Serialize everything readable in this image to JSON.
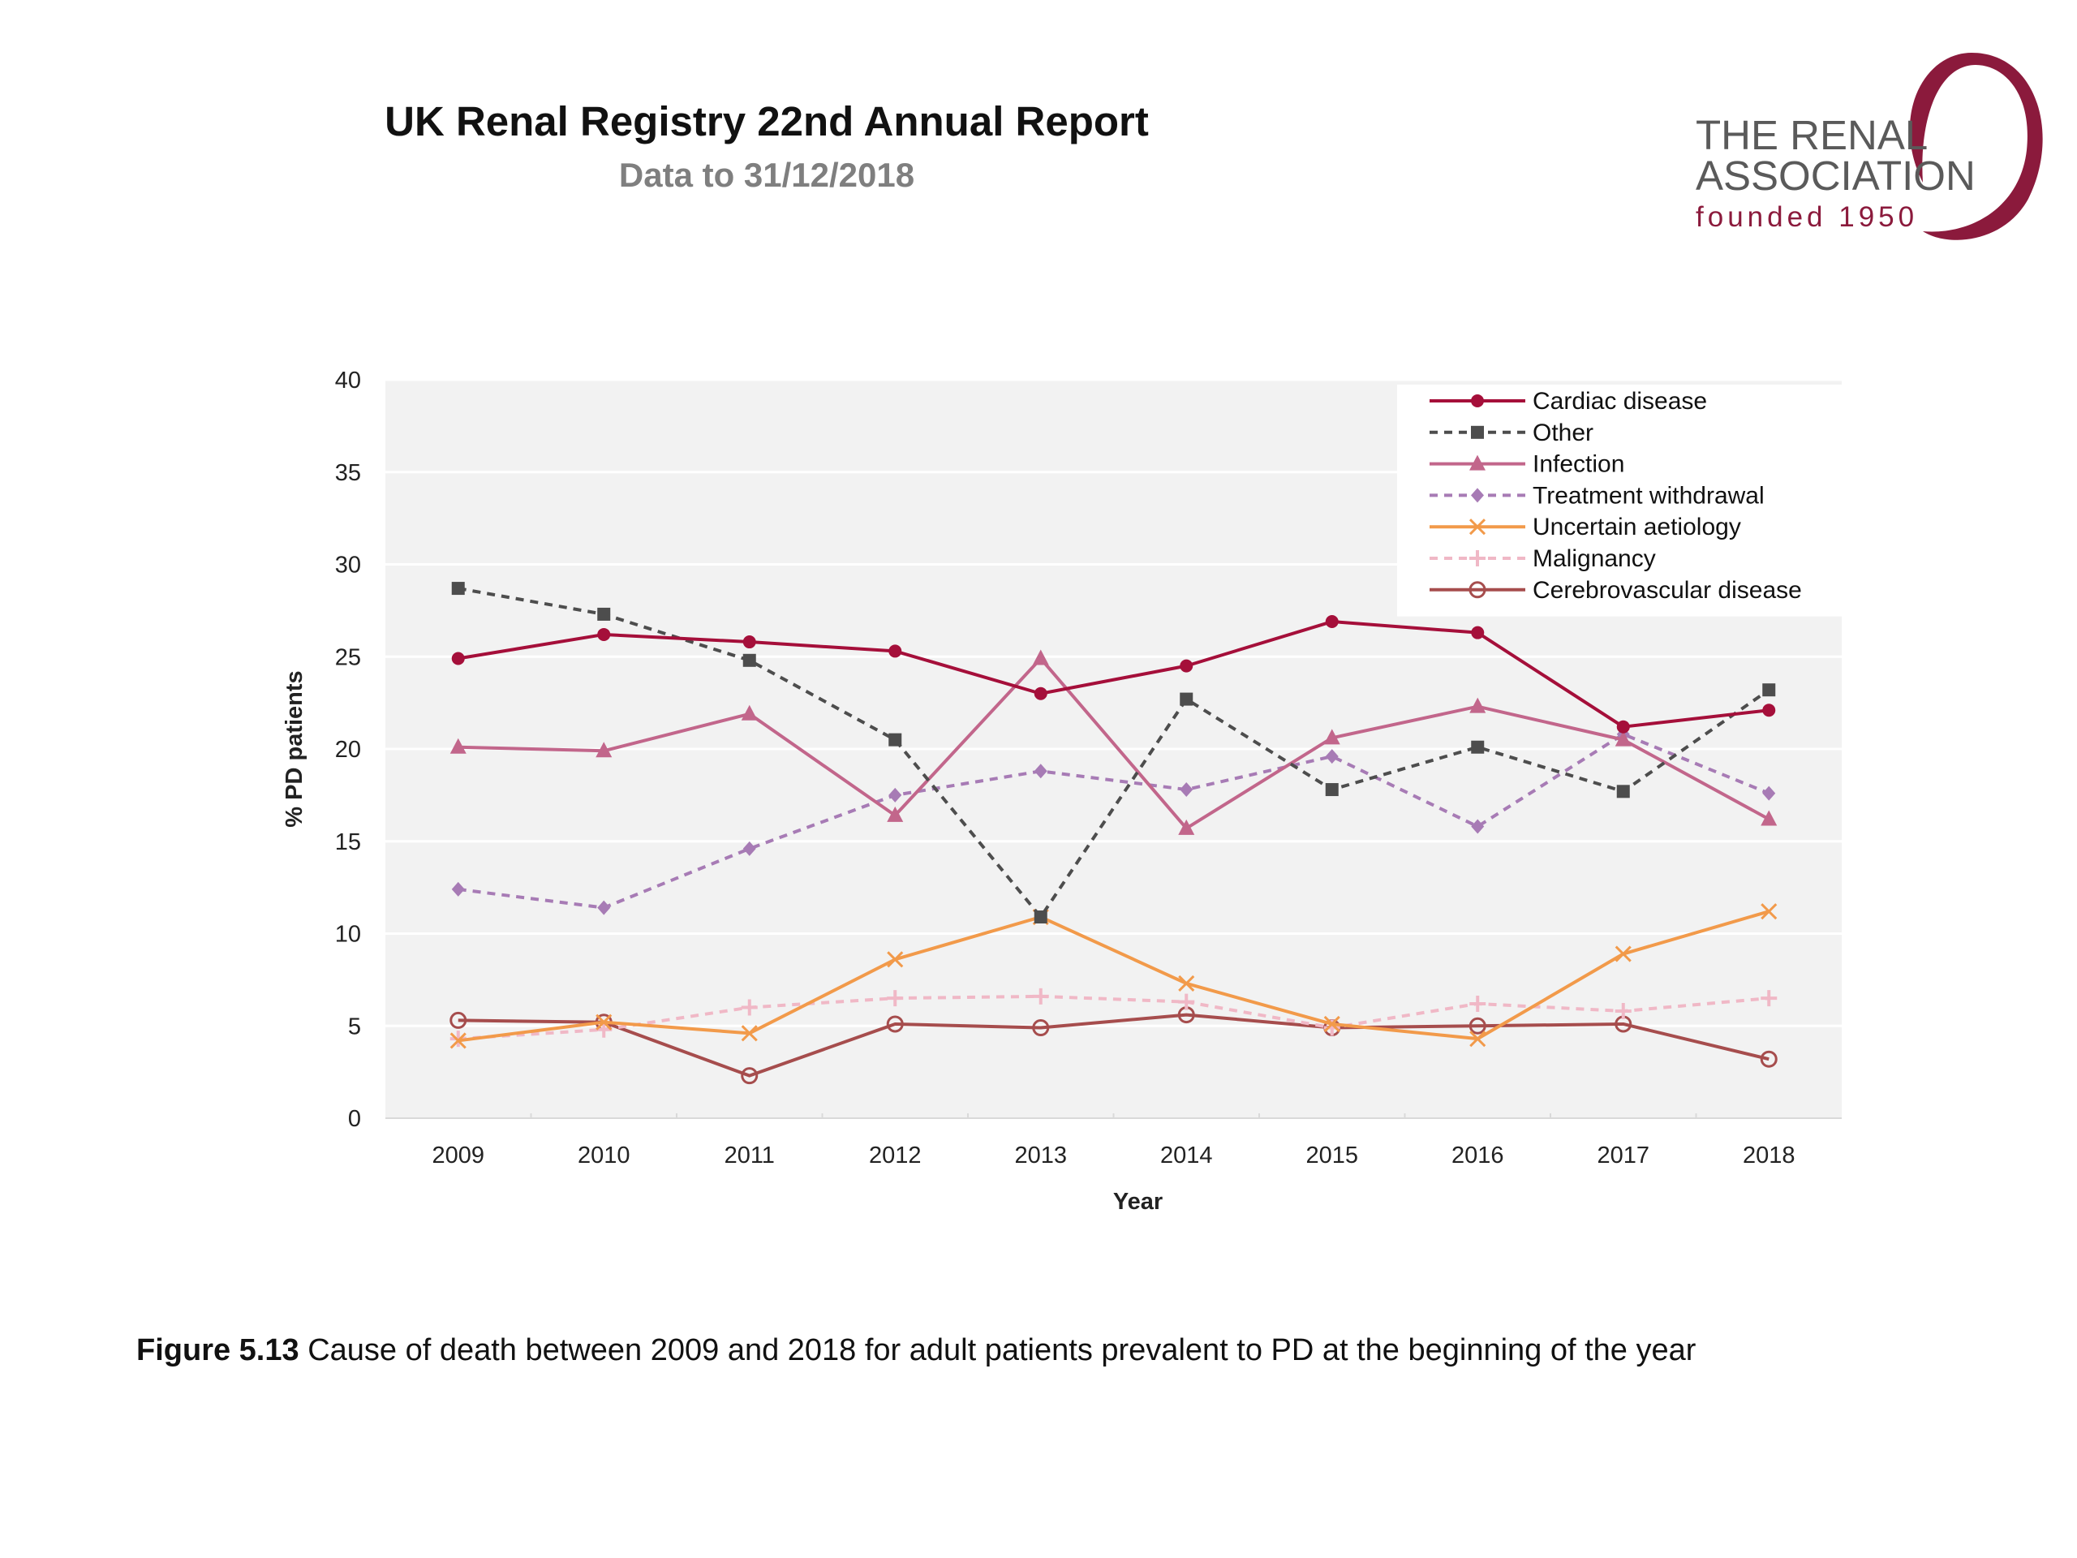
{
  "header": {
    "title": "UK Renal Registry 22nd Annual Report",
    "subtitle": "Data to 31/12/2018"
  },
  "logo": {
    "line1": "THE RENAL",
    "line2": "ASSOCIATION",
    "line3": "founded 1950",
    "color": "#8b1a3c"
  },
  "caption": {
    "label": "Figure 5.13",
    "text": " Cause of death between 2009 and 2018 for adult patients prevalent to PD at the beginning of the year"
  },
  "chart_data": {
    "type": "line",
    "xlabel": "Year",
    "ylabel": "% PD patients",
    "ylim": [
      0,
      40
    ],
    "yticks": [
      0,
      5,
      10,
      15,
      20,
      25,
      30,
      35,
      40
    ],
    "grid": true,
    "legend_position": "top-right",
    "categories": [
      "2009",
      "2010",
      "2011",
      "2012",
      "2013",
      "2014",
      "2015",
      "2016",
      "2017",
      "2018"
    ],
    "series": [
      {
        "name": "Cardiac disease",
        "color": "#a50f3a",
        "dash": "solid",
        "marker": "circle",
        "values": [
          24.9,
          26.2,
          25.8,
          25.3,
          23.0,
          24.5,
          26.9,
          26.3,
          21.2,
          22.1
        ]
      },
      {
        "name": "Other",
        "color": "#4d4d4d",
        "dash": "dashed",
        "marker": "square",
        "values": [
          28.7,
          27.3,
          24.8,
          20.5,
          10.9,
          22.7,
          17.8,
          20.1,
          17.7,
          23.2
        ]
      },
      {
        "name": "Infection",
        "color": "#c2668b",
        "dash": "solid",
        "marker": "triangle",
        "values": [
          20.1,
          19.9,
          21.9,
          16.4,
          24.9,
          15.7,
          20.6,
          22.3,
          20.5,
          16.2
        ]
      },
      {
        "name": "Treatment withdrawal",
        "color": "#a77bb5",
        "dash": "dashed",
        "marker": "diamond",
        "values": [
          12.4,
          11.4,
          14.6,
          17.5,
          18.8,
          17.8,
          19.6,
          15.8,
          20.8,
          17.6
        ]
      },
      {
        "name": "Uncertain aetiology",
        "color": "#f29a4a",
        "dash": "solid",
        "marker": "x",
        "values": [
          4.2,
          5.2,
          4.6,
          8.6,
          10.9,
          7.3,
          5.1,
          4.3,
          8.9,
          11.2
        ]
      },
      {
        "name": "Malignancy",
        "color": "#f0b8c6",
        "dash": "dashed",
        "marker": "plus",
        "values": [
          4.3,
          4.8,
          6.0,
          6.5,
          6.6,
          6.3,
          4.9,
          6.2,
          5.8,
          6.5
        ]
      },
      {
        "name": "Cerebrovascular disease",
        "color": "#a64d4d",
        "dash": "solid",
        "marker": "open-circle",
        "values": [
          5.3,
          5.2,
          2.3,
          5.1,
          4.9,
          5.6,
          4.9,
          5.0,
          5.1,
          3.2
        ]
      }
    ]
  }
}
